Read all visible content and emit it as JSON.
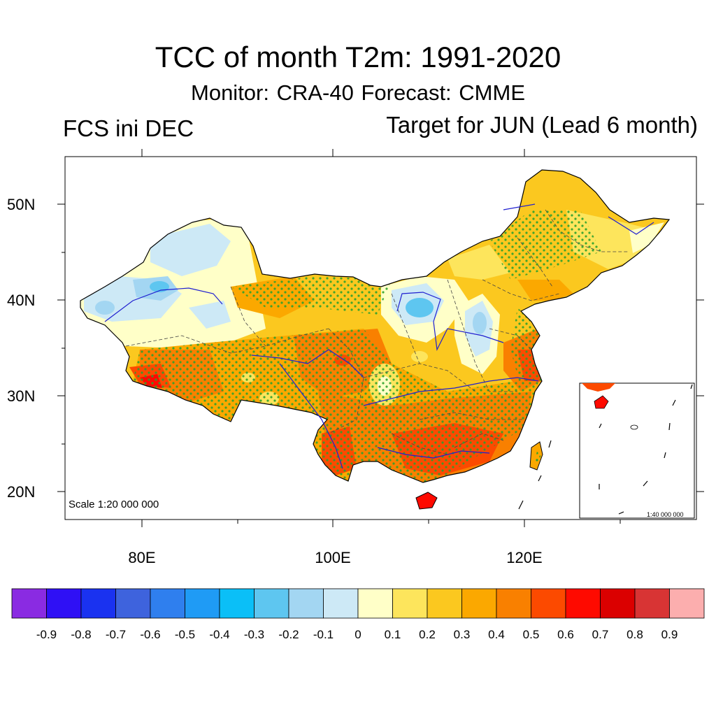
{
  "title": "TCC of month T2m: 1991-2020",
  "subtitle": "Monitor: CRA-40   Forecast: CMME",
  "left_label": "FCS ini DEC",
  "right_label": "Target for JUN (Lead 6 month)",
  "map": {
    "scale_label": "Scale 1:20 000 000",
    "inset_scale_label": "1:40 000 000",
    "lat_labels": [
      "50N",
      "40N",
      "30N",
      "20N"
    ],
    "lon_labels": [
      "80E",
      "100E",
      "120E"
    ]
  },
  "colorbar": {
    "labels": [
      "-0.9",
      "-0.8",
      "-0.7",
      "-0.6",
      "-0.5",
      "-0.4",
      "-0.3",
      "-0.2",
      "-0.1",
      "0",
      "0.1",
      "0.2",
      "0.3",
      "0.4",
      "0.5",
      "0.6",
      "0.7",
      "0.8",
      "0.9"
    ],
    "colors": [
      "#8a2be2",
      "#2f10f5",
      "#1a32f0",
      "#3e63dd",
      "#2f7fee",
      "#1f9bf5",
      "#0bbff7",
      "#5ec6f0",
      "#a3d6f2",
      "#cde9f6",
      "#ffffc8",
      "#fde55c",
      "#fbc81f",
      "#fba800",
      "#f98000",
      "#fc4a00",
      "#fe0a00",
      "#db0000",
      "#d83434",
      "#fcaeae"
    ]
  },
  "legend_colors": {
    "stipple": "#2ca02c",
    "river": "#2020d0",
    "border": "#444444"
  }
}
